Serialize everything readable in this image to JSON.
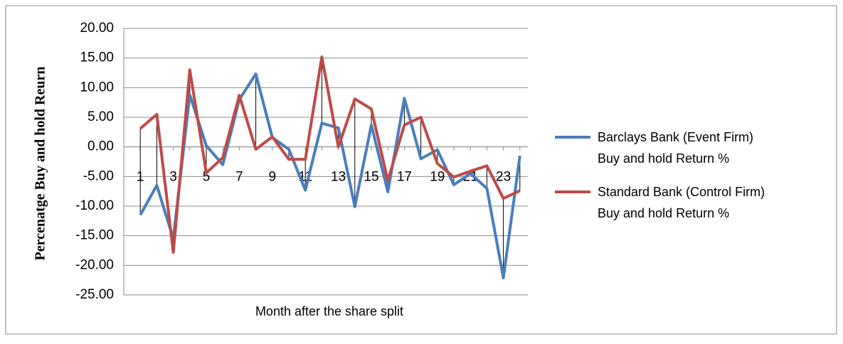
{
  "chart_data": {
    "type": "line",
    "y_label": "Percenatge Buy and hold Reurn",
    "x_label": "Month after the share split",
    "categories": [
      1,
      null,
      3,
      null,
      5,
      null,
      7,
      null,
      9,
      null,
      11,
      null,
      13,
      null,
      15,
      null,
      17,
      null,
      19,
      null,
      21,
      null,
      23,
      null
    ],
    "series": [
      {
        "name": "Barclays Bank  (Event Firm) Buy and hold Return %",
        "color": "#4a7ebb",
        "values": [
          -11.5,
          -6.5,
          -15.5,
          8.8,
          0.2,
          -3,
          8,
          12.3,
          1.6,
          -0.4,
          -7.3,
          4,
          3.2,
          -10.1,
          3.7,
          -7.6,
          8.2,
          -2,
          -0.5,
          -6.4,
          -4.5,
          -7,
          -22.1,
          -1.5
        ]
      },
      {
        "name": "Standard Bank (Control Firm) Buy and hold Return %",
        "color": "#be4b48",
        "values": [
          3.1,
          5.5,
          -17.8,
          13,
          -4.4,
          -1.8,
          8.7,
          -0.4,
          1.7,
          -2.1,
          -2.1,
          15.2,
          0,
          8.1,
          6.4,
          -5.7,
          3.7,
          5,
          -2.8,
          -5.1,
          -4.1,
          -3.2,
          -8.7,
          -7.4
        ]
      }
    ],
    "ylim": [
      -25,
      20
    ],
    "yticks": [
      {
        "value": -25,
        "label": "-25.00"
      },
      {
        "value": -20,
        "label": "-20.00"
      },
      {
        "value": -15,
        "label": "-15.00"
      },
      {
        "value": -10,
        "label": "-10.00"
      },
      {
        "value": -5,
        "label": "-5.00"
      },
      {
        "value": 0,
        "label": "0.00"
      },
      {
        "value": 5,
        "label": "5.00"
      },
      {
        "value": 10,
        "label": "10.00"
      },
      {
        "value": 15,
        "label": "15.00"
      },
      {
        "value": 20,
        "label": "20.00"
      }
    ],
    "grid": true,
    "high_low_lines": true,
    "legend": "right"
  }
}
